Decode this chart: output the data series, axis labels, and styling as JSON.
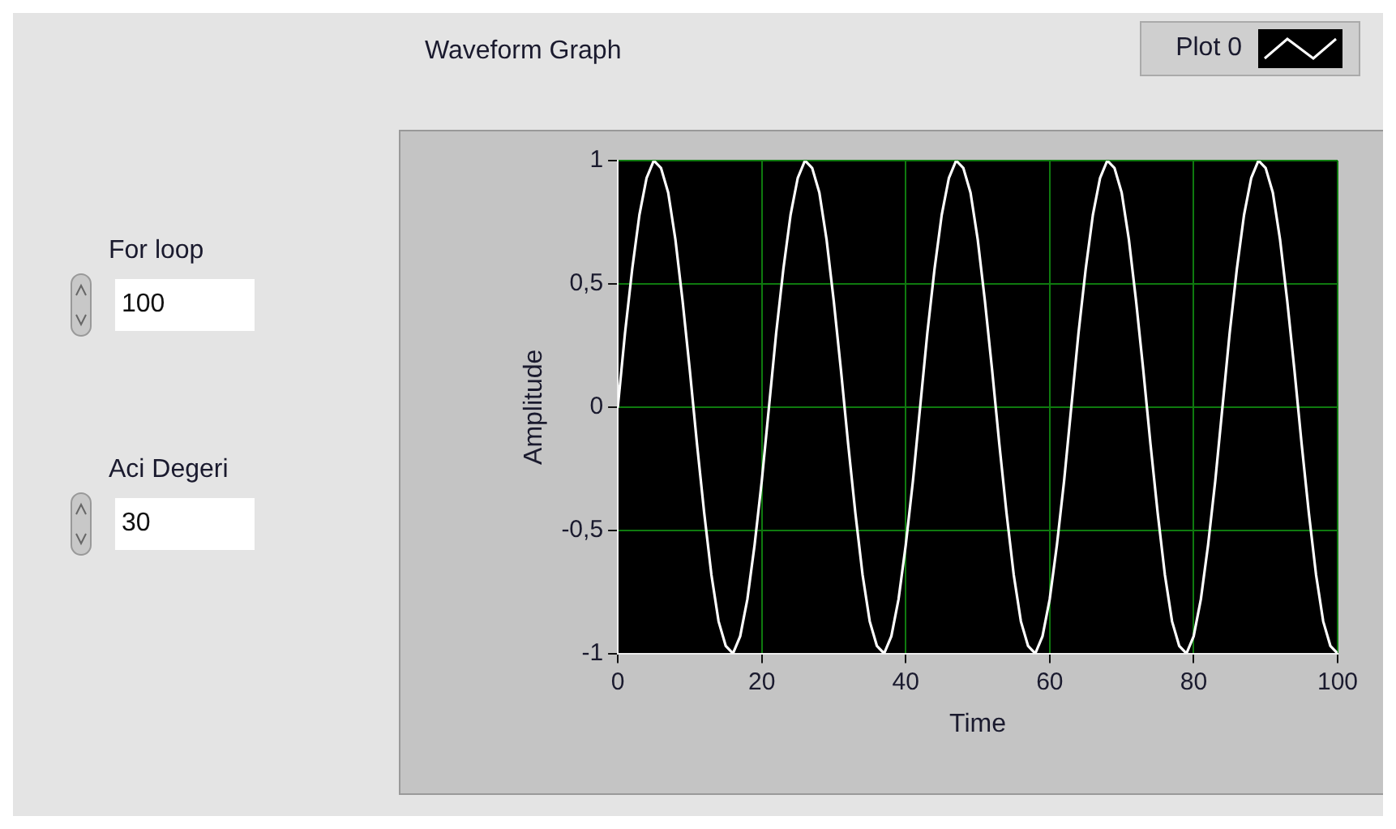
{
  "chart_data": {
    "type": "line",
    "title": "Waveform Graph",
    "xlabel": "Time",
    "ylabel": "Amplitude",
    "x": [
      0,
      1,
      2,
      3,
      4,
      5,
      6,
      7,
      8,
      9,
      10,
      11,
      12,
      13,
      14,
      15,
      16,
      17,
      18,
      19,
      20,
      21,
      22,
      23,
      24,
      25,
      26,
      27,
      28,
      29,
      30,
      31,
      32,
      33,
      34,
      35,
      36,
      37,
      38,
      39,
      40,
      41,
      42,
      43,
      44,
      45,
      46,
      47,
      48,
      49,
      50,
      51,
      52,
      53,
      54,
      55,
      56,
      57,
      58,
      59,
      60,
      61,
      62,
      63,
      64,
      65,
      66,
      67,
      68,
      69,
      70,
      71,
      72,
      73,
      74,
      75,
      76,
      77,
      78,
      79,
      80,
      81,
      82,
      83,
      84,
      85,
      86,
      87,
      88,
      89,
      90,
      91,
      92,
      93,
      94,
      95,
      96,
      97,
      98,
      99,
      100
    ],
    "series": [
      {
        "name": "Plot 0",
        "color": "#ffffff",
        "values": [
          0,
          0.3,
          0.56,
          0.78,
          0.93,
          1,
          0.97,
          0.87,
          0.68,
          0.43,
          0.15,
          -0.15,
          -0.43,
          -0.68,
          -0.87,
          -0.97,
          -1,
          -0.93,
          -0.78,
          -0.56,
          -0.3,
          0,
          0.3,
          0.56,
          0.78,
          0.93,
          1,
          0.97,
          0.87,
          0.68,
          0.43,
          0.15,
          -0.15,
          -0.43,
          -0.68,
          -0.87,
          -0.97,
          -1,
          -0.93,
          -0.78,
          -0.56,
          -0.3,
          0,
          0.3,
          0.56,
          0.78,
          0.93,
          1,
          0.97,
          0.87,
          0.68,
          0.43,
          0.15,
          -0.15,
          -0.43,
          -0.68,
          -0.87,
          -0.97,
          -1,
          -0.93,
          -0.78,
          -0.56,
          -0.3,
          0,
          0.3,
          0.56,
          0.78,
          0.93,
          1,
          0.97,
          0.87,
          0.68,
          0.43,
          0.15,
          -0.15,
          -0.43,
          -0.68,
          -0.87,
          -0.97,
          -1,
          -0.93,
          -0.78,
          -0.56,
          -0.3,
          0,
          0.3,
          0.56,
          0.78,
          0.93,
          1,
          0.97,
          0.87,
          0.68,
          0.43,
          0.15,
          -0.15,
          -0.43,
          -0.68,
          -0.87,
          -0.97,
          -1
        ]
      }
    ],
    "xlim": [
      0,
      100
    ],
    "xticks": [
      0,
      20,
      40,
      60,
      80,
      100
    ],
    "ylim": [
      -1,
      1
    ],
    "yticks": [
      {
        "value": -1,
        "label": "-1"
      },
      {
        "value": -0.5,
        "label": "-0,5"
      },
      {
        "value": 0,
        "label": "0"
      },
      {
        "value": 0.5,
        "label": "0,5"
      },
      {
        "value": 1,
        "label": "1"
      }
    ],
    "grid": true,
    "legend": "top right",
    "marker": "none",
    "line_style": "solid",
    "annotations": [
      "For loop",
      "100",
      "Aci Degeri",
      "30"
    ]
  }
}
